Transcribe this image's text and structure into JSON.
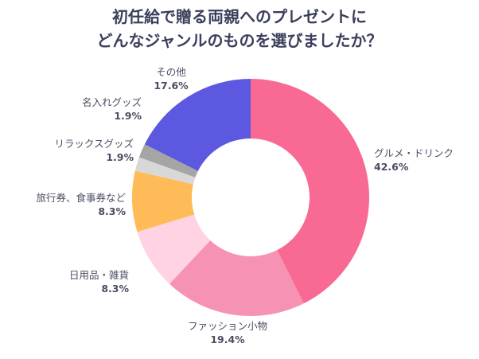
{
  "chart_data": {
    "type": "pie",
    "title_lines": [
      "初任給で贈る両親へのプレゼントに",
      "どんなジャンルのものを選びましたか？"
    ],
    "categories": [
      "グルメ・ドリンク",
      "ファッション小物",
      "日用品・雑貨",
      "旅行券、食事券など",
      "リラックスグッズ",
      "名入れグッズ",
      "その他"
    ],
    "values": [
      42.6,
      19.4,
      8.3,
      8.3,
      1.9,
      1.9,
      17.6
    ],
    "value_labels": [
      "42.6%",
      "19.4%",
      "8.3%",
      "8.3%",
      "1.9%",
      "1.9%",
      "17.6%"
    ],
    "colors": [
      "#f86994",
      "#f692b3",
      "#ffd3e3",
      "#ffbb57",
      "#d8d8d8",
      "#a5a5a5",
      "#5c58e0"
    ],
    "donut": true,
    "start": "12 o'clock, clockwise"
  }
}
